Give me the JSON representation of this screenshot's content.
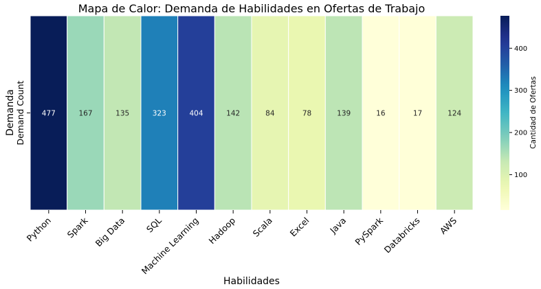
{
  "chart_data": {
    "type": "heatmap",
    "title": "Mapa de Calor: Demanda de Habilidades en Ofertas de Trabajo",
    "xlabel": "Habilidades",
    "ylabel": "Demanda",
    "row_labels": [
      "Demand Count"
    ],
    "categories": [
      "Python",
      "Spark",
      "Big Data",
      "SQL",
      "Machine Learning",
      "Hadoop",
      "Scala",
      "Excel",
      "Java",
      "PySpark",
      "Databricks",
      "AWS"
    ],
    "values": [
      477,
      167,
      135,
      323,
      404,
      142,
      84,
      78,
      139,
      16,
      17,
      124
    ],
    "colorbar": {
      "label": "Cantidad de Ofertas",
      "range": [
        16,
        477
      ],
      "ticks": [
        100,
        200,
        300,
        400
      ],
      "colormap": "YlGnBu"
    },
    "annotations": true
  }
}
